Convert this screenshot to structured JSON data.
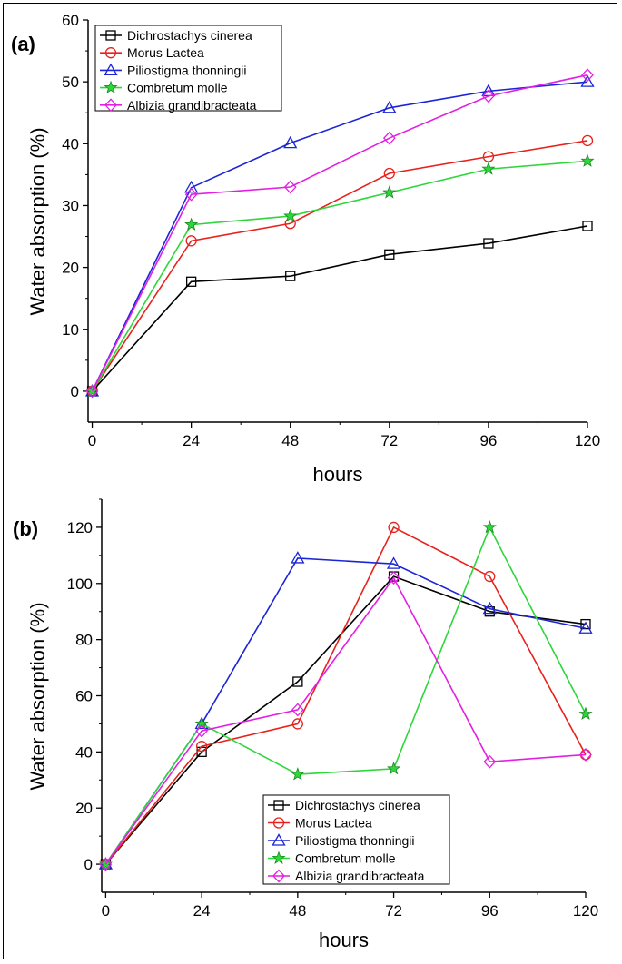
{
  "chart_data": [
    {
      "type": "line",
      "panel_label": "(a)",
      "title": "",
      "xlabel": "hours",
      "ylabel": "Water absorption (%)",
      "x": [
        0,
        24,
        48,
        72,
        96,
        120
      ],
      "xticks": [
        "0",
        "24",
        "48",
        "72",
        "96",
        "120"
      ],
      "yticks": [
        "0",
        "10",
        "20",
        "30",
        "40",
        "50",
        "60"
      ],
      "xlim": [
        -1,
        120
      ],
      "ylim": [
        -5,
        60
      ],
      "legend_position": "top-left",
      "series": [
        {
          "name": "Dichrostachys cinerea",
          "color": "#000000",
          "marker": "square",
          "values": [
            0,
            17.7,
            18.6,
            22.1,
            23.9,
            26.7
          ]
        },
        {
          "name": "Morus Lactea",
          "color": "#e8211c",
          "marker": "circle",
          "values": [
            0,
            24.3,
            27.1,
            35.2,
            37.9,
            40.5
          ]
        },
        {
          "name": "Piliostigma thonningii",
          "color": "#1c25d6",
          "marker": "triangle",
          "values": [
            0,
            32.9,
            40.1,
            45.8,
            48.5,
            50.0
          ]
        },
        {
          "name": "Combretum molle",
          "color": "#2ed63a",
          "marker": "star",
          "values": [
            0,
            26.9,
            28.3,
            32.1,
            35.9,
            37.2
          ]
        },
        {
          "name": "Albizia grandibracteata",
          "color": "#e31fe3",
          "marker": "diamond",
          "values": [
            0,
            31.8,
            33.0,
            40.9,
            47.7,
            51.1
          ]
        }
      ]
    },
    {
      "type": "line",
      "panel_label": "(b)",
      "title": "",
      "xlabel": "hours",
      "ylabel": "Water absorption (%)",
      "x": [
        0,
        24,
        48,
        72,
        96,
        120
      ],
      "xticks": [
        "0",
        "24",
        "48",
        "72",
        "96",
        "120"
      ],
      "yticks": [
        "0",
        "20",
        "40",
        "60",
        "80",
        "100",
        "120"
      ],
      "xlim": [
        -1,
        120
      ],
      "ylim": [
        -10,
        130
      ],
      "legend_position": "bottom-center",
      "series": [
        {
          "name": "Dichrostachys cinerea",
          "color": "#000000",
          "marker": "square",
          "values": [
            0,
            40.0,
            65.0,
            102.5,
            90.0,
            85.5
          ]
        },
        {
          "name": "Morus Lactea",
          "color": "#e8211c",
          "marker": "circle",
          "values": [
            0,
            42.0,
            50.0,
            120.0,
            102.5,
            39.0
          ]
        },
        {
          "name": "Piliostigma thonningii",
          "color": "#1c25d6",
          "marker": "triangle",
          "values": [
            0,
            50.0,
            109.0,
            107.0,
            91.0,
            84.0
          ]
        },
        {
          "name": "Combretum molle",
          "color": "#2ed63a",
          "marker": "star",
          "values": [
            0,
            50.0,
            32.0,
            34.0,
            120.0,
            53.5
          ]
        },
        {
          "name": "Albizia grandibracteata",
          "color": "#e31fe3",
          "marker": "diamond",
          "values": [
            0,
            47.5,
            55.0,
            102.0,
            36.5,
            39.0
          ]
        }
      ]
    }
  ]
}
